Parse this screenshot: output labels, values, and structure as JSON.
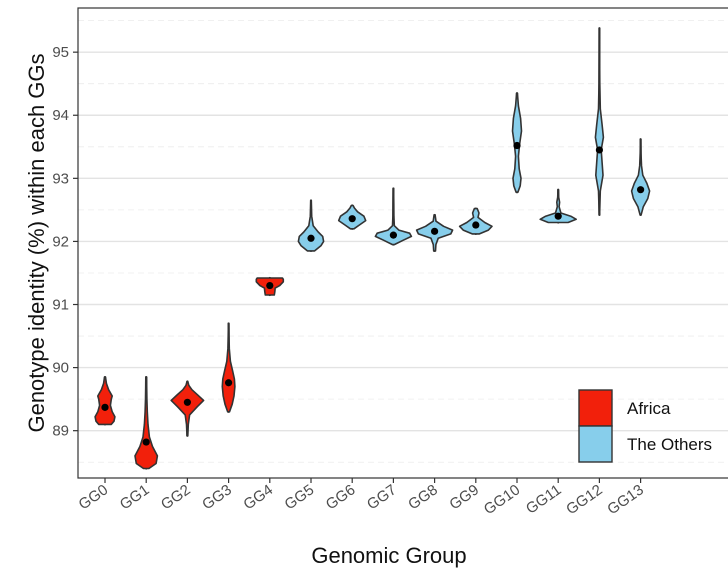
{
  "chart_data": {
    "type": "violin",
    "xlabel": "Genomic Group",
    "ylabel": "Genotype identity (%) within each GGs",
    "ylim": [
      88.25,
      95.7
    ],
    "yticks": [
      89,
      90,
      91,
      92,
      93,
      94,
      95
    ],
    "grid": true,
    "legend_position": "bottom-right",
    "legend": [
      {
        "label": "Africa",
        "color": "#f2200b"
      },
      {
        "label": "The Others",
        "color": "#87ceeb"
      }
    ],
    "categories": [
      "GG0",
      "GG1",
      "GG2",
      "GG3",
      "GG4",
      "GG5",
      "GG6",
      "GG7",
      "GG8",
      "GG9",
      "GG10",
      "GG11",
      "GG12",
      "GG13"
    ],
    "groups": [
      {
        "name": "GG0",
        "region": "Africa",
        "mean": 89.37,
        "min": 89.1,
        "max": 89.85,
        "profile": [
          [
            89.1,
            0.35
          ],
          [
            89.15,
            0.5
          ],
          [
            89.22,
            0.55
          ],
          [
            89.3,
            0.4
          ],
          [
            89.4,
            0.3
          ],
          [
            89.5,
            0.35
          ],
          [
            89.55,
            0.4
          ],
          [
            89.65,
            0.2
          ],
          [
            89.75,
            0.08
          ],
          [
            89.85,
            0.03
          ]
        ]
      },
      {
        "name": "GG1",
        "region": "Africa",
        "mean": 88.82,
        "min": 88.4,
        "max": 89.85,
        "profile": [
          [
            88.4,
            0.15
          ],
          [
            88.48,
            0.55
          ],
          [
            88.6,
            0.62
          ],
          [
            88.75,
            0.35
          ],
          [
            88.9,
            0.18
          ],
          [
            89.1,
            0.1
          ],
          [
            89.3,
            0.06
          ],
          [
            89.5,
            0.04
          ],
          [
            89.7,
            0.03
          ],
          [
            89.85,
            0.02
          ]
        ]
      },
      {
        "name": "GG2",
        "region": "Africa",
        "mean": 89.45,
        "min": 88.92,
        "max": 89.78,
        "profile": [
          [
            88.92,
            0.02
          ],
          [
            89.1,
            0.05
          ],
          [
            89.25,
            0.12
          ],
          [
            89.38,
            0.55
          ],
          [
            89.48,
            0.9
          ],
          [
            89.56,
            0.6
          ],
          [
            89.65,
            0.25
          ],
          [
            89.72,
            0.08
          ],
          [
            89.78,
            0.02
          ]
        ]
      },
      {
        "name": "GG3",
        "region": "Africa",
        "mean": 89.76,
        "min": 89.3,
        "max": 90.7,
        "profile": [
          [
            89.3,
            0.05
          ],
          [
            89.42,
            0.2
          ],
          [
            89.55,
            0.3
          ],
          [
            89.7,
            0.35
          ],
          [
            89.82,
            0.32
          ],
          [
            89.95,
            0.22
          ],
          [
            90.1,
            0.1
          ],
          [
            90.3,
            0.04
          ],
          [
            90.5,
            0.02
          ],
          [
            90.7,
            0.01
          ]
        ]
      },
      {
        "name": "GG4",
        "region": "Africa",
        "mean": 91.3,
        "min": 91.15,
        "max": 91.42,
        "profile": [
          [
            91.15,
            0.25
          ],
          [
            91.2,
            0.28
          ],
          [
            91.26,
            0.3
          ],
          [
            91.3,
            0.55
          ],
          [
            91.36,
            0.75
          ],
          [
            91.4,
            0.75
          ],
          [
            91.42,
            0.7
          ]
        ]
      },
      {
        "name": "GG5",
        "region": "Others",
        "mean": 92.05,
        "min": 91.85,
        "max": 92.65,
        "profile": [
          [
            91.85,
            0.2
          ],
          [
            91.93,
            0.55
          ],
          [
            92.0,
            0.7
          ],
          [
            92.08,
            0.65
          ],
          [
            92.15,
            0.4
          ],
          [
            92.25,
            0.12
          ],
          [
            92.4,
            0.04
          ],
          [
            92.55,
            0.02
          ],
          [
            92.65,
            0.01
          ]
        ]
      },
      {
        "name": "GG6",
        "region": "Others",
        "mean": 92.36,
        "min": 92.2,
        "max": 92.57,
        "profile": [
          [
            92.2,
            0.1
          ],
          [
            92.26,
            0.4
          ],
          [
            92.33,
            0.75
          ],
          [
            92.4,
            0.65
          ],
          [
            92.47,
            0.3
          ],
          [
            92.53,
            0.12
          ],
          [
            92.57,
            0.05
          ]
        ]
      },
      {
        "name": "GG7",
        "region": "Others",
        "mean": 92.1,
        "min": 91.95,
        "max": 92.84,
        "profile": [
          [
            91.95,
            0.05
          ],
          [
            92.02,
            0.55
          ],
          [
            92.08,
            1.0
          ],
          [
            92.13,
            0.9
          ],
          [
            92.18,
            0.3
          ],
          [
            92.25,
            0.05
          ],
          [
            92.4,
            0.03
          ],
          [
            92.6,
            0.02
          ],
          [
            92.84,
            0.01
          ]
        ]
      },
      {
        "name": "GG8",
        "region": "Others",
        "mean": 92.16,
        "min": 91.85,
        "max": 92.42,
        "profile": [
          [
            91.85,
            0.05
          ],
          [
            91.95,
            0.07
          ],
          [
            92.05,
            0.2
          ],
          [
            92.12,
            0.9
          ],
          [
            92.18,
            1.0
          ],
          [
            92.24,
            0.5
          ],
          [
            92.32,
            0.08
          ],
          [
            92.42,
            0.03
          ]
        ]
      },
      {
        "name": "GG9",
        "region": "Others",
        "mean": 92.26,
        "min": 92.12,
        "max": 92.52,
        "profile": [
          [
            92.12,
            0.2
          ],
          [
            92.18,
            0.7
          ],
          [
            92.24,
            0.9
          ],
          [
            92.3,
            0.5
          ],
          [
            92.38,
            0.12
          ],
          [
            92.45,
            0.18
          ],
          [
            92.52,
            0.08
          ]
        ]
      },
      {
        "name": "GG10",
        "region": "Others",
        "mean": 93.52,
        "min": 92.78,
        "max": 94.35,
        "profile": [
          [
            92.78,
            0.05
          ],
          [
            92.88,
            0.18
          ],
          [
            93.0,
            0.22
          ],
          [
            93.15,
            0.12
          ],
          [
            93.35,
            0.08
          ],
          [
            93.55,
            0.15
          ],
          [
            93.75,
            0.25
          ],
          [
            93.95,
            0.2
          ],
          [
            94.15,
            0.08
          ],
          [
            94.35,
            0.02
          ]
        ]
      },
      {
        "name": "GG11",
        "region": "Others",
        "mean": 92.4,
        "min": 92.3,
        "max": 92.82,
        "profile": [
          [
            92.3,
            0.55
          ],
          [
            92.35,
            1.0
          ],
          [
            92.4,
            0.7
          ],
          [
            92.45,
            0.15
          ],
          [
            92.55,
            0.05
          ],
          [
            92.62,
            0.08
          ],
          [
            92.7,
            0.03
          ],
          [
            92.82,
            0.01
          ]
        ]
      },
      {
        "name": "GG12",
        "region": "Others",
        "mean": 93.45,
        "min": 92.42,
        "max": 95.38,
        "profile": [
          [
            92.42,
            0.01
          ],
          [
            92.8,
            0.05
          ],
          [
            93.05,
            0.2
          ],
          [
            93.25,
            0.15
          ],
          [
            93.45,
            0.1
          ],
          [
            93.65,
            0.22
          ],
          [
            93.85,
            0.15
          ],
          [
            94.1,
            0.05
          ],
          [
            94.5,
            0.02
          ],
          [
            95.0,
            0.01
          ],
          [
            95.38,
            0.005
          ]
        ]
      },
      {
        "name": "GG13",
        "region": "Others",
        "mean": 92.82,
        "min": 92.42,
        "max": 93.62,
        "profile": [
          [
            92.42,
            0.03
          ],
          [
            92.55,
            0.15
          ],
          [
            92.68,
            0.4
          ],
          [
            92.8,
            0.5
          ],
          [
            92.92,
            0.35
          ],
          [
            93.05,
            0.12
          ],
          [
            93.2,
            0.05
          ],
          [
            93.4,
            0.02
          ],
          [
            93.62,
            0.01
          ]
        ]
      }
    ]
  }
}
